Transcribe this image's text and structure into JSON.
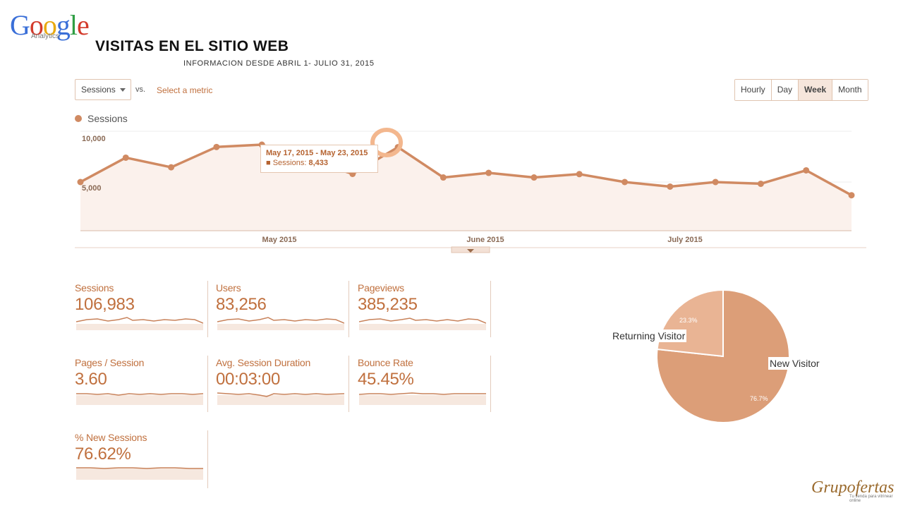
{
  "logo": {
    "text": "Google",
    "sub": "Analytics"
  },
  "page": {
    "title": "VISITAS  EN EL SITIO WEB",
    "subtitle": "INFORMACION DESDE ABRIL 1- JULIO 31, 2015"
  },
  "toolbar": {
    "metric_label": "Sessions",
    "vs_label": "vs.",
    "select_metric_label": "Select a metric",
    "granularity": [
      {
        "label": "Hourly",
        "active": false
      },
      {
        "label": "Day",
        "active": false
      },
      {
        "label": "Week",
        "active": true
      },
      {
        "label": "Month",
        "active": false
      }
    ]
  },
  "colors": {
    "accent": "#c0703e",
    "series": "#d08a62",
    "area": "#fbf1ec",
    "pie_new": "#dc9e78",
    "pie_returning": "#e9b494"
  },
  "chart_data": {
    "type": "line",
    "legend": "Sessions",
    "y_ticks": [
      {
        "value": 10000,
        "label": "10,000"
      },
      {
        "value": 5000,
        "label": "5,000"
      }
    ],
    "ylim": [
      0,
      10000
    ],
    "x_labels": [
      "May 2015",
      "June 2015",
      "July 2015"
    ],
    "x": [
      "Mar 29",
      "Apr 5",
      "Apr 12",
      "Apr 19",
      "Apr 26",
      "May 3",
      "May 10",
      "May 17",
      "May 24",
      "May 31",
      "Jun 7",
      "Jun 14",
      "Jun 21",
      "Jun 28",
      "Jul 5",
      "Jul 12",
      "Jul 19",
      "Jul 26",
      "Aug 2"
    ],
    "values": [
      5000,
      7400,
      6450,
      8450,
      8680,
      7250,
      5800,
      8433,
      5450,
      5900,
      5450,
      5780,
      5000,
      4550,
      5000,
      4830,
      6150,
      3700,
      3700
    ],
    "tooltip": {
      "date": "May 17, 2015 - May 23, 2015",
      "series": "Sessions:",
      "value": "8,433"
    }
  },
  "metrics": [
    {
      "label": "Sessions",
      "value": "106,983"
    },
    {
      "label": "Users",
      "value": "83,256"
    },
    {
      "label": "Pageviews",
      "value": "385,235"
    },
    {
      "label": "Pages / Session",
      "value": "3.60"
    },
    {
      "label": "Avg. Session Duration",
      "value": "00:03:00"
    },
    {
      "label": "Bounce Rate",
      "value": "45.45%"
    },
    {
      "label": "% New Sessions",
      "value": "76.62%"
    }
  ],
  "pie": {
    "type": "pie",
    "slices": [
      {
        "name": "New Visitor",
        "pct_label": "76.7%",
        "value": 76.7
      },
      {
        "name": "Returning Visitor",
        "pct_label": "23.3%",
        "value": 23.3
      }
    ]
  },
  "brand": {
    "name": "Grupofertas",
    "tagline": "Tu tienda para vitrinear online"
  }
}
